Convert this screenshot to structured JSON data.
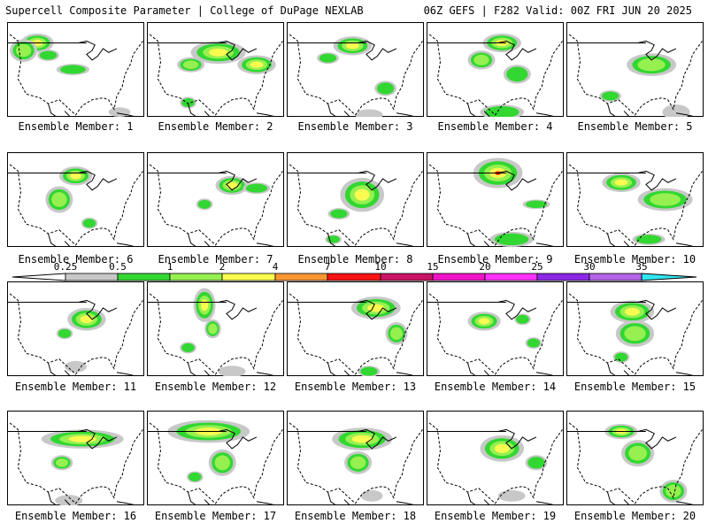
{
  "header": {
    "left": "Supercell Composite Parameter | College of DuPage NEXLAB",
    "right": "06Z GEFS | F282 Valid: 00Z FRI JUN 20 2025"
  },
  "legend": {
    "ticks": [
      "0.25",
      "0.5",
      "1",
      "2",
      "4",
      "7",
      "10",
      "15",
      "20",
      "25",
      "30",
      "35"
    ],
    "colors": [
      "#c8c8c8",
      "#32d732",
      "#96f050",
      "#fafa50",
      "#fa9632",
      "#fa1414",
      "#c81464",
      "#f014c8",
      "#fa32fa",
      "#8c28e6",
      "#b464e6",
      "#32e6f0"
    ],
    "outline_color": "#000000"
  },
  "panels": [
    {
      "label": "Ensemble Member: 1",
      "blobs": [
        [
          0.22,
          0.22,
          0.12,
          0.1,
          3
        ],
        [
          0.12,
          0.3,
          0.1,
          0.12,
          2
        ],
        [
          0.3,
          0.35,
          0.08,
          0.06,
          1
        ],
        [
          0.48,
          0.5,
          0.12,
          0.06,
          1
        ],
        [
          0.82,
          0.95,
          0.08,
          0.05,
          0
        ]
      ]
    },
    {
      "label": "Ensemble Member: 2",
      "blobs": [
        [
          0.52,
          0.32,
          0.2,
          0.12,
          3
        ],
        [
          0.8,
          0.45,
          0.14,
          0.1,
          3
        ],
        [
          0.32,
          0.45,
          0.1,
          0.08,
          2
        ],
        [
          0.3,
          0.85,
          0.06,
          0.06,
          1
        ]
      ]
    },
    {
      "label": "Ensemble Member: 3",
      "blobs": [
        [
          0.48,
          0.25,
          0.14,
          0.1,
          3
        ],
        [
          0.3,
          0.38,
          0.08,
          0.06,
          1
        ],
        [
          0.72,
          0.7,
          0.08,
          0.08,
          1
        ],
        [
          0.6,
          0.98,
          0.1,
          0.06,
          0
        ]
      ]
    },
    {
      "label": "Ensemble Member: 4",
      "blobs": [
        [
          0.55,
          0.22,
          0.14,
          0.1,
          3
        ],
        [
          0.4,
          0.4,
          0.1,
          0.1,
          2
        ],
        [
          0.66,
          0.55,
          0.1,
          0.1,
          1
        ],
        [
          0.55,
          0.95,
          0.16,
          0.08,
          1
        ]
      ]
    },
    {
      "label": "Ensemble Member: 5",
      "blobs": [
        [
          0.62,
          0.45,
          0.18,
          0.12,
          2
        ],
        [
          0.32,
          0.78,
          0.08,
          0.06,
          1
        ],
        [
          0.8,
          0.95,
          0.1,
          0.08,
          0
        ]
      ]
    },
    {
      "label": "Ensemble Member: 6",
      "blobs": [
        [
          0.5,
          0.25,
          0.12,
          0.1,
          3
        ],
        [
          0.38,
          0.5,
          0.1,
          0.14,
          2
        ],
        [
          0.6,
          0.75,
          0.06,
          0.06,
          1
        ]
      ]
    },
    {
      "label": "Ensemble Member: 7",
      "blobs": [
        [
          0.62,
          0.35,
          0.12,
          0.1,
          3
        ],
        [
          0.42,
          0.55,
          0.06,
          0.06,
          1
        ],
        [
          0.8,
          0.38,
          0.1,
          0.06,
          1
        ]
      ]
    },
    {
      "label": "Ensemble Member: 8",
      "blobs": [
        [
          0.55,
          0.45,
          0.16,
          0.18,
          3
        ],
        [
          0.38,
          0.65,
          0.08,
          0.06,
          1
        ],
        [
          0.34,
          0.92,
          0.06,
          0.05,
          1
        ]
      ]
    },
    {
      "label": "Ensemble Member: 9",
      "blobs": [
        [
          0.52,
          0.22,
          0.18,
          0.16,
          4
        ],
        [
          0.8,
          0.55,
          0.1,
          0.05,
          1
        ],
        [
          0.62,
          0.92,
          0.16,
          0.08,
          1
        ]
      ]
    },
    {
      "label": "Ensemble Member: 10",
      "blobs": [
        [
          0.4,
          0.32,
          0.14,
          0.1,
          3
        ],
        [
          0.72,
          0.5,
          0.2,
          0.12,
          2
        ],
        [
          0.6,
          0.92,
          0.12,
          0.06,
          1
        ]
      ]
    },
    {
      "label": "Ensemble Member: 11",
      "blobs": [
        [
          0.58,
          0.4,
          0.14,
          0.12,
          3
        ],
        [
          0.42,
          0.55,
          0.06,
          0.06,
          1
        ],
        [
          0.5,
          0.9,
          0.08,
          0.06,
          0
        ]
      ]
    },
    {
      "label": "Ensemble Member: 12",
      "blobs": [
        [
          0.42,
          0.25,
          0.08,
          0.18,
          3
        ],
        [
          0.48,
          0.5,
          0.06,
          0.1,
          2
        ],
        [
          0.3,
          0.7,
          0.06,
          0.06,
          1
        ],
        [
          0.62,
          0.95,
          0.1,
          0.06,
          0
        ]
      ]
    },
    {
      "label": "Ensemble Member: 13",
      "blobs": [
        [
          0.65,
          0.28,
          0.18,
          0.12,
          3
        ],
        [
          0.8,
          0.55,
          0.08,
          0.12,
          2
        ],
        [
          0.6,
          0.95,
          0.08,
          0.06,
          1
        ]
      ]
    },
    {
      "label": "Ensemble Member: 14",
      "blobs": [
        [
          0.42,
          0.42,
          0.12,
          0.1,
          3
        ],
        [
          0.7,
          0.4,
          0.06,
          0.06,
          1
        ],
        [
          0.78,
          0.65,
          0.06,
          0.06,
          1
        ]
      ]
    },
    {
      "label": "Ensemble Member: 15",
      "blobs": [
        [
          0.48,
          0.32,
          0.16,
          0.12,
          3
        ],
        [
          0.5,
          0.55,
          0.14,
          0.14,
          2
        ],
        [
          0.4,
          0.8,
          0.06,
          0.06,
          1
        ]
      ]
    },
    {
      "label": "Ensemble Member: 16",
      "blobs": [
        [
          0.55,
          0.3,
          0.3,
          0.1,
          3
        ],
        [
          0.4,
          0.55,
          0.08,
          0.08,
          2
        ],
        [
          0.45,
          0.95,
          0.1,
          0.06,
          0
        ]
      ]
    },
    {
      "label": "Ensemble Member: 17",
      "blobs": [
        [
          0.45,
          0.22,
          0.3,
          0.12,
          3
        ],
        [
          0.55,
          0.55,
          0.1,
          0.14,
          2
        ],
        [
          0.35,
          0.7,
          0.06,
          0.06,
          1
        ]
      ]
    },
    {
      "label": "Ensemble Member: 18",
      "blobs": [
        [
          0.55,
          0.3,
          0.22,
          0.12,
          3
        ],
        [
          0.52,
          0.55,
          0.1,
          0.12,
          2
        ],
        [
          0.62,
          0.9,
          0.08,
          0.06,
          0
        ]
      ]
    },
    {
      "label": "Ensemble Member: 19",
      "blobs": [
        [
          0.55,
          0.4,
          0.16,
          0.14,
          3
        ],
        [
          0.8,
          0.55,
          0.08,
          0.08,
          1
        ],
        [
          0.62,
          0.9,
          0.1,
          0.06,
          0
        ]
      ]
    },
    {
      "label": "Ensemble Member: 20",
      "blobs": [
        [
          0.4,
          0.22,
          0.12,
          0.08,
          3
        ],
        [
          0.52,
          0.45,
          0.12,
          0.14,
          2
        ],
        [
          0.78,
          0.85,
          0.1,
          0.12,
          2
        ]
      ]
    }
  ]
}
